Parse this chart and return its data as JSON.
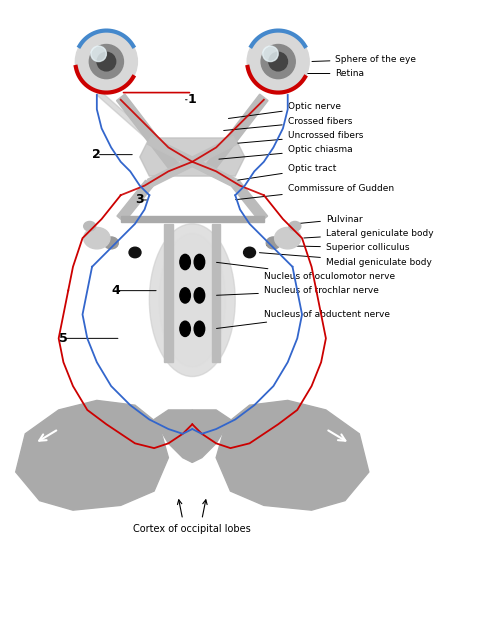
{
  "background_color": "#ffffff",
  "title": "",
  "labels": {
    "sphere_of_eye": "Sphere of the eye",
    "retina": "Retina",
    "optic_nerve": "Optic nerve",
    "crossed_fibers": "Crossed fibers",
    "uncrossed_fibers": "Uncrossed fibers",
    "optic_chiasma": "Optic chiasma",
    "optic_tract": "Optic tract",
    "commissure_gudden": "Commissure of Gudden",
    "pulvinar": "Pulvinar",
    "lateral_geniculate": "Lateral geniculate body",
    "superior_colliculus": "Superior colliculus",
    "medial_geniculate": "Medial geniculate body",
    "nucleus_oculomotor": "Nucleus of oculomotor nerve",
    "nucleus_trochlar": "Nucleus of trochlar nerve",
    "nucleus_abductent": "Nucleus of abductent nerve",
    "cortex_occipital": "Cortex of occipital lobes"
  },
  "numbers": [
    "1",
    "2",
    "3",
    "4",
    "5"
  ],
  "colors": {
    "red_fiber": "#cc0000",
    "blue_fiber": "#3366cc",
    "gray_structure": "#aaaaaa",
    "dark_gray": "#666666",
    "black": "#000000",
    "eye_highlight": "#c8e0f0",
    "eye_gray": "#cccccc",
    "light_gray": "#dddddd",
    "white": "#ffffff",
    "arrow": "#000000"
  }
}
